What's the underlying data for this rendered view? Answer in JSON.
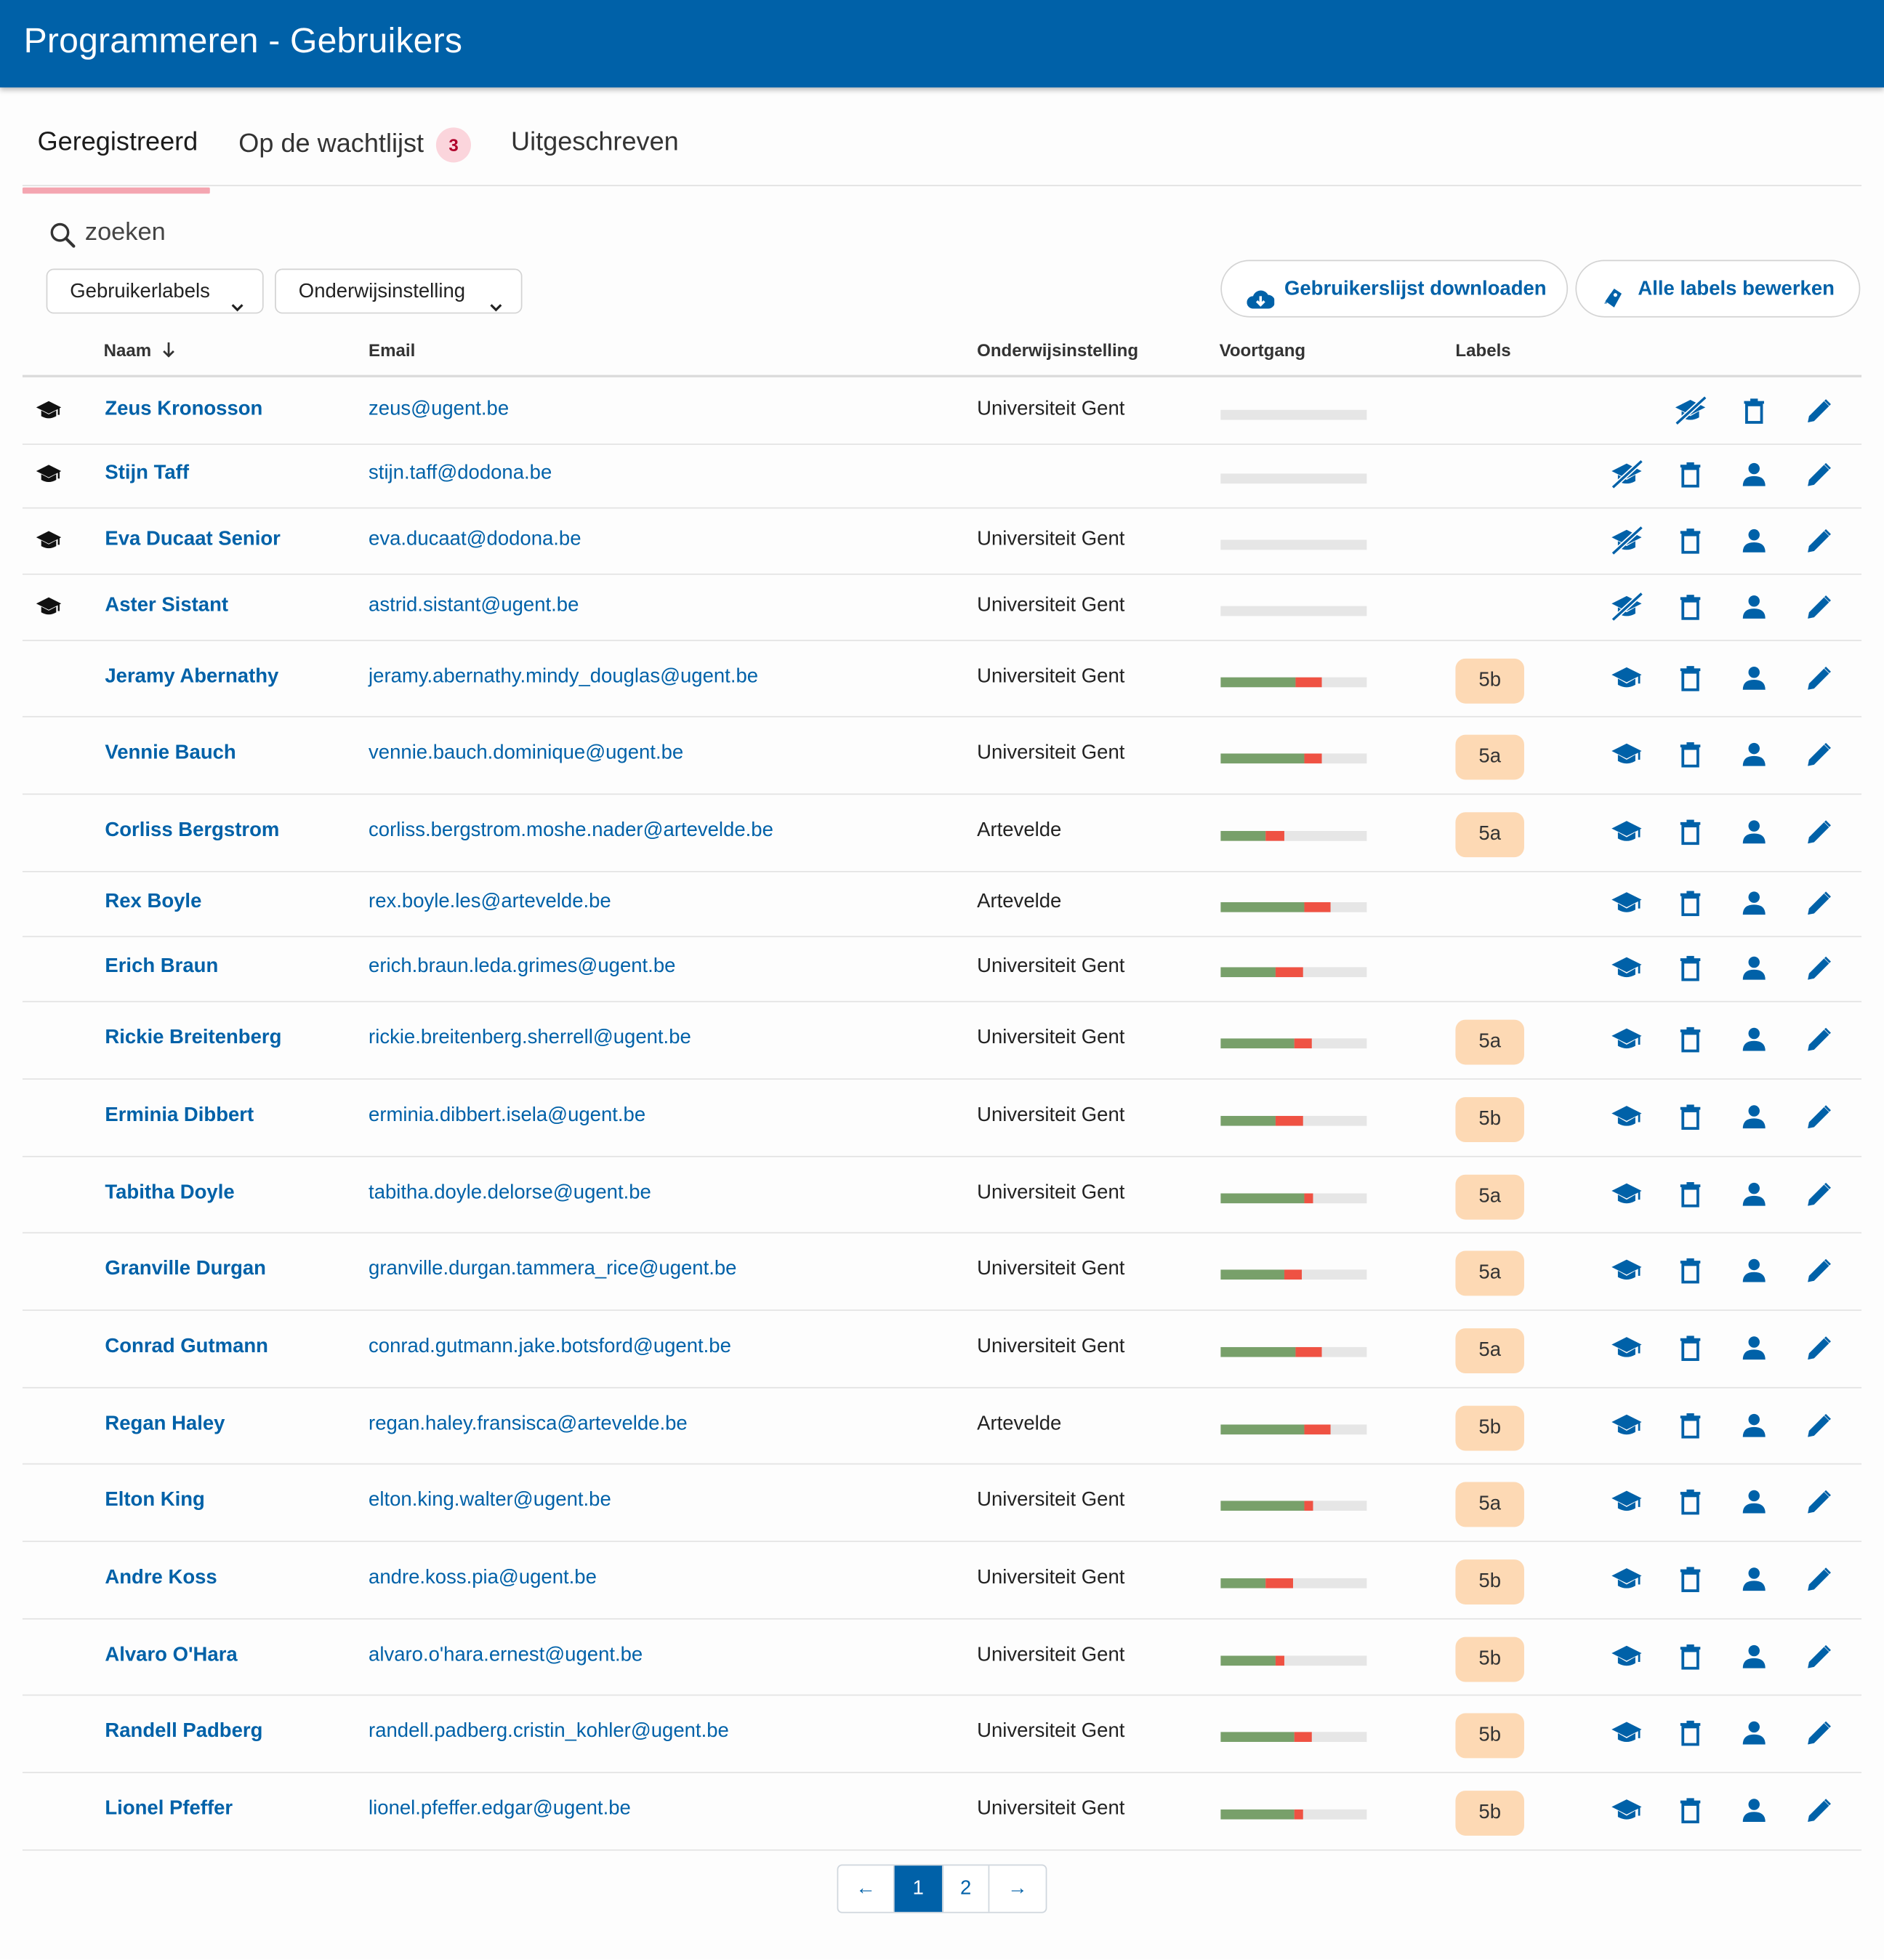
{
  "header": {
    "title": "Programmeren - Gebruikers"
  },
  "tabs": [
    {
      "label": "Geregistreerd",
      "active": true
    },
    {
      "label": "Op de wachtlijst",
      "count": "3"
    },
    {
      "label": "Uitgeschreven"
    }
  ],
  "search": {
    "placeholder": "zoeken"
  },
  "filters": {
    "labels": "Gebruikerlabels",
    "institution": "Onderwijsinstelling"
  },
  "actions": {
    "download": "Gebruikerslijst downloaden",
    "edit_labels": "Alle labels bewerken"
  },
  "table": {
    "columns": {
      "name": "Naam",
      "email": "Email",
      "institution": "Onderwijsinstelling",
      "progress": "Voortgang",
      "labels": "Labels"
    },
    "rows": [
      {
        "name": "Zeus Kronosson",
        "email": "zeus@ugent.be",
        "institution": "Universiteit Gent",
        "label": "",
        "progress": {
          "correct": 0,
          "wrong": 0
        },
        "role": "course-admin",
        "actions": [
          "remove-admin",
          "delete",
          "edit"
        ]
      },
      {
        "name": "Stijn Taff",
        "email": "stijn.taff@dodona.be",
        "institution": "",
        "label": "",
        "progress": {
          "correct": 0,
          "wrong": 0
        },
        "role": "course-admin",
        "actions": [
          "remove-admin",
          "delete",
          "user",
          "edit"
        ]
      },
      {
        "name": "Eva Ducaat Senior",
        "email": "eva.ducaat@dodona.be",
        "institution": "Universiteit Gent",
        "label": "",
        "progress": {
          "correct": 0,
          "wrong": 0
        },
        "role": "course-admin",
        "actions": [
          "remove-admin",
          "delete",
          "user",
          "edit"
        ]
      },
      {
        "name": "Aster Sistant",
        "email": "astrid.sistant@ugent.be",
        "institution": "Universiteit Gent",
        "label": "",
        "progress": {
          "correct": 0,
          "wrong": 0
        },
        "role": "course-admin",
        "actions": [
          "remove-admin",
          "delete",
          "user",
          "edit"
        ]
      },
      {
        "name": "Jeramy Abernathy",
        "email": "jeramy.abernathy.mindy_douglas@ugent.be",
        "institution": "Universiteit Gent",
        "label": "5b",
        "progress": {
          "correct": 0.51,
          "wrong": 0.18
        },
        "role": "student",
        "actions": [
          "make-admin",
          "delete",
          "user",
          "edit"
        ]
      },
      {
        "name": "Vennie Bauch",
        "email": "vennie.bauch.dominique@ugent.be",
        "institution": "Universiteit Gent",
        "label": "5a",
        "progress": {
          "correct": 0.57,
          "wrong": 0.12
        },
        "role": "student",
        "actions": [
          "make-admin",
          "delete",
          "user",
          "edit"
        ]
      },
      {
        "name": "Corliss Bergstrom",
        "email": "corliss.bergstrom.moshe.nader@artevelde.be",
        "institution": "Artevelde",
        "label": "5a",
        "progress": {
          "correct": 0.31,
          "wrong": 0.13
        },
        "role": "student",
        "actions": [
          "make-admin",
          "delete",
          "user",
          "edit"
        ]
      },
      {
        "name": "Rex Boyle",
        "email": "rex.boyle.les@artevelde.be",
        "institution": "Artevelde",
        "label": "",
        "progress": {
          "correct": 0.57,
          "wrong": 0.18
        },
        "role": "student",
        "actions": [
          "make-admin",
          "delete",
          "user",
          "edit"
        ]
      },
      {
        "name": "Erich Braun",
        "email": "erich.braun.leda.grimes@ugent.be",
        "institution": "Universiteit Gent",
        "label": "",
        "progress": {
          "correct": 0.38,
          "wrong": 0.19
        },
        "role": "student",
        "actions": [
          "make-admin",
          "delete",
          "user",
          "edit"
        ]
      },
      {
        "name": "Rickie Breitenberg",
        "email": "rickie.breitenberg.sherrell@ugent.be",
        "institution": "Universiteit Gent",
        "label": "5a",
        "progress": {
          "correct": 0.5,
          "wrong": 0.12
        },
        "role": "student",
        "actions": [
          "make-admin",
          "delete",
          "user",
          "edit"
        ]
      },
      {
        "name": "Erminia Dibbert",
        "email": "erminia.dibbert.isela@ugent.be",
        "institution": "Universiteit Gent",
        "label": "5b",
        "progress": {
          "correct": 0.38,
          "wrong": 0.19
        },
        "role": "student",
        "actions": [
          "make-admin",
          "delete",
          "user",
          "edit"
        ]
      },
      {
        "name": "Tabitha Doyle",
        "email": "tabitha.doyle.delorse@ugent.be",
        "institution": "Universiteit Gent",
        "label": "5a",
        "progress": {
          "correct": 0.57,
          "wrong": 0.06
        },
        "role": "student",
        "actions": [
          "make-admin",
          "delete",
          "user",
          "edit"
        ]
      },
      {
        "name": "Granville Durgan",
        "email": "granville.durgan.tammera_rice@ugent.be",
        "institution": "Universiteit Gent",
        "label": "5a",
        "progress": {
          "correct": 0.44,
          "wrong": 0.12
        },
        "role": "student",
        "actions": [
          "make-admin",
          "delete",
          "user",
          "edit"
        ]
      },
      {
        "name": "Conrad Gutmann",
        "email": "conrad.gutmann.jake.botsford@ugent.be",
        "institution": "Universiteit Gent",
        "label": "5a",
        "progress": {
          "correct": 0.51,
          "wrong": 0.18
        },
        "role": "student",
        "actions": [
          "make-admin",
          "delete",
          "user",
          "edit"
        ]
      },
      {
        "name": "Regan Haley",
        "email": "regan.haley.fransisca@artevelde.be",
        "institution": "Artevelde",
        "label": "5b",
        "progress": {
          "correct": 0.57,
          "wrong": 0.18
        },
        "role": "student",
        "actions": [
          "make-admin",
          "delete",
          "user",
          "edit"
        ]
      },
      {
        "name": "Elton King",
        "email": "elton.king.walter@ugent.be",
        "institution": "Universiteit Gent",
        "label": "5a",
        "progress": {
          "correct": 0.57,
          "wrong": 0.06
        },
        "role": "student",
        "actions": [
          "make-admin",
          "delete",
          "user",
          "edit"
        ]
      },
      {
        "name": "Andre Koss",
        "email": "andre.koss.pia@ugent.be",
        "institution": "Universiteit Gent",
        "label": "5b",
        "progress": {
          "correct": 0.31,
          "wrong": 0.19
        },
        "role": "student",
        "actions": [
          "make-admin",
          "delete",
          "user",
          "edit"
        ]
      },
      {
        "name": "Alvaro O'Hara",
        "email": "alvaro.o'hara.ernest@ugent.be",
        "institution": "Universiteit Gent",
        "label": "5b",
        "progress": {
          "correct": 0.38,
          "wrong": 0.06
        },
        "role": "student",
        "actions": [
          "make-admin",
          "delete",
          "user",
          "edit"
        ]
      },
      {
        "name": "Randell Padberg",
        "email": "randell.padberg.cristin_kohler@ugent.be",
        "institution": "Universiteit Gent",
        "label": "5b",
        "progress": {
          "correct": 0.5,
          "wrong": 0.12
        },
        "role": "student",
        "actions": [
          "make-admin",
          "delete",
          "user",
          "edit"
        ]
      },
      {
        "name": "Lionel Pfeffer",
        "email": "lionel.pfeffer.edgar@ugent.be",
        "institution": "Universiteit Gent",
        "label": "5b",
        "progress": {
          "correct": 0.5,
          "wrong": 0.06
        },
        "role": "student",
        "actions": [
          "make-admin",
          "delete",
          "user",
          "edit"
        ]
      }
    ]
  },
  "pagination": {
    "prev": "←",
    "pages": [
      "1",
      "2"
    ],
    "current": "1",
    "next": "→"
  },
  "colors": {
    "primary": "#0061a8",
    "progress_correct": "#78a06a",
    "progress_wrong": "#ef5243",
    "label_bg": "#fdd9b4",
    "tab_accent": "#f4a6b1"
  }
}
